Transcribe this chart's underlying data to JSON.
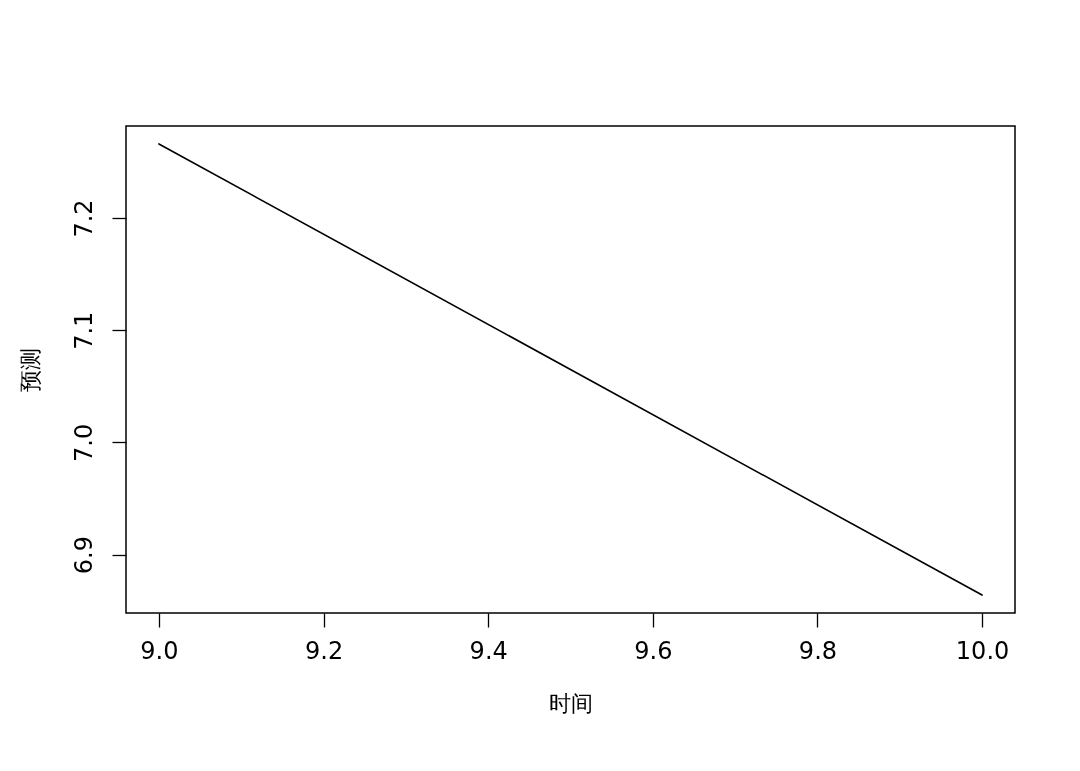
{
  "chart_data": {
    "type": "line",
    "xlabel": "时间",
    "ylabel": "预测",
    "x": [
      9.0,
      10.0
    ],
    "series": [
      {
        "color": "#000000",
        "values": [
          7.266,
          6.864
        ]
      }
    ],
    "xlim": [
      8.96,
      10.04
    ],
    "ylim": [
      6.848,
      7.282
    ],
    "xticks": [
      {
        "value": 9,
        "label": "9.0"
      },
      9.2,
      9.4,
      9.6,
      9.8,
      {
        "value": 10,
        "label": "10.0"
      }
    ],
    "yticks": [
      {
        "value": 6.9,
        "label": "6.9"
      },
      {
        "value": 7,
        "label": "7.0"
      },
      7.1,
      7.2
    ]
  }
}
